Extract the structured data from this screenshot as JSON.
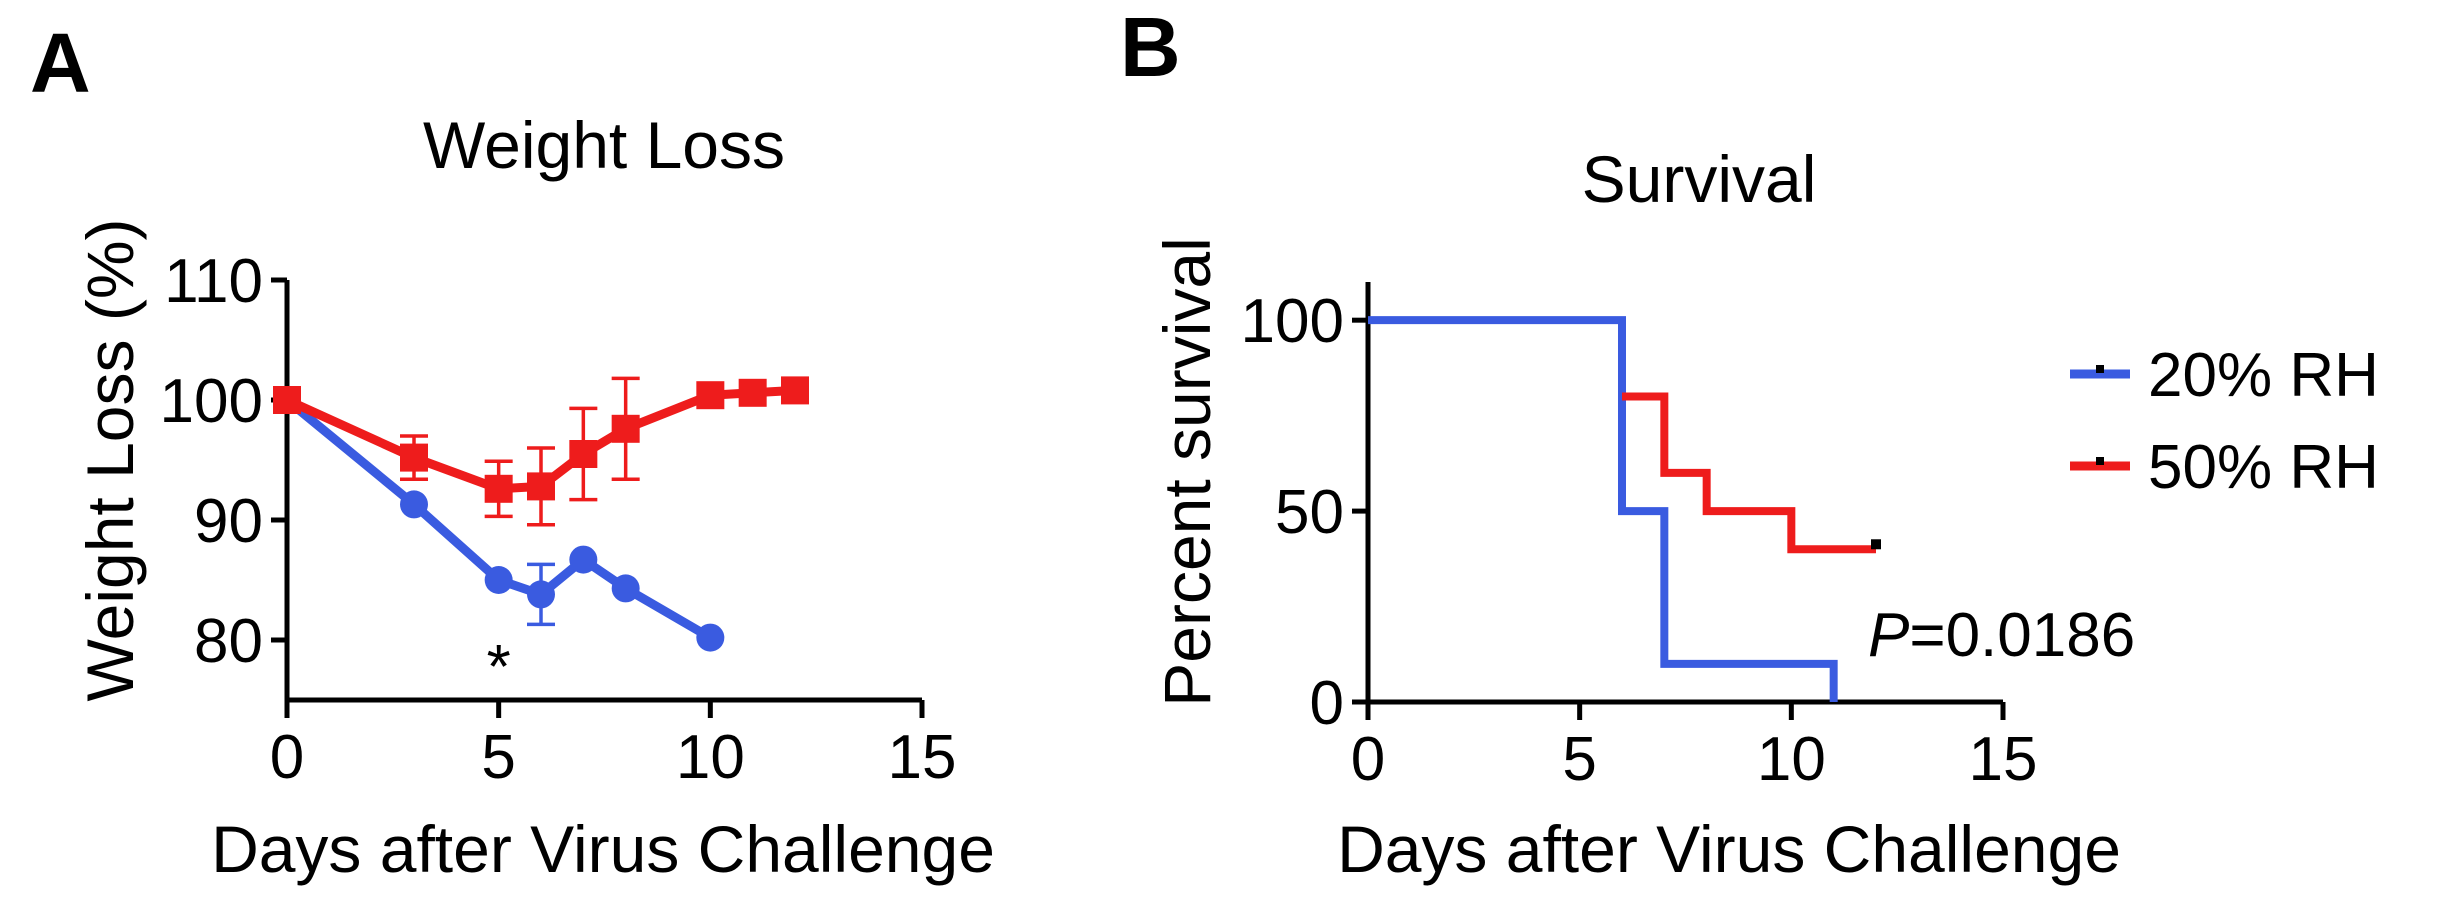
{
  "figure": {
    "panel_a_letter": "A",
    "panel_b_letter": "B"
  },
  "colors": {
    "rh20": "#3a5be0",
    "rh50": "#ee1c1c",
    "axis": "#000000"
  },
  "chart_data": [
    {
      "panel": "A",
      "type": "line",
      "title": "Weight Loss",
      "xlabel": "Days after Virus Challenge",
      "ylabel": "Weight Loss (%)",
      "xlim": [
        0,
        15
      ],
      "ylim": [
        75,
        110
      ],
      "xticks": [
        0,
        5,
        10,
        15
      ],
      "yticks": [
        80,
        90,
        100,
        110
      ],
      "grid": false,
      "annotations": [
        {
          "text": "*",
          "x": 5,
          "y": 78.5
        }
      ],
      "series": [
        {
          "key": "rh20",
          "marker": "circle",
          "points": [
            {
              "x": 0,
              "y": 100,
              "err": 0
            },
            {
              "x": 3,
              "y": 91.3,
              "err": 0
            },
            {
              "x": 5,
              "y": 85,
              "err": 0
            },
            {
              "x": 6,
              "y": 83.8,
              "err": 2.5
            },
            {
              "x": 7,
              "y": 86.7,
              "err": 0
            },
            {
              "x": 8,
              "y": 84.3,
              "err": 0
            },
            {
              "x": 10,
              "y": 80.2,
              "err": 0
            }
          ]
        },
        {
          "key": "rh50",
          "marker": "square",
          "points": [
            {
              "x": 0,
              "y": 100,
              "err": 0
            },
            {
              "x": 3,
              "y": 95.2,
              "err": 1.8
            },
            {
              "x": 5,
              "y": 92.6,
              "err": 2.3
            },
            {
              "x": 6,
              "y": 92.8,
              "err": 3.2
            },
            {
              "x": 7,
              "y": 95.5,
              "err": 3.8
            },
            {
              "x": 8,
              "y": 97.6,
              "err": 4.2
            },
            {
              "x": 10,
              "y": 100.4,
              "err": 0
            },
            {
              "x": 11,
              "y": 100.6,
              "err": 0
            },
            {
              "x": 12,
              "y": 100.8,
              "err": 0
            }
          ]
        }
      ]
    },
    {
      "panel": "B",
      "type": "line",
      "subtype": "step",
      "title": "Survival",
      "xlabel": "Days after Virus Challenge",
      "ylabel": "Percent survival",
      "xlim": [
        0,
        15
      ],
      "ylim": [
        0,
        110
      ],
      "xticks": [
        0,
        5,
        10,
        15
      ],
      "yticks": [
        0,
        50,
        100
      ],
      "grid": false,
      "legend_position": "right",
      "annotation": {
        "italic": "P",
        "rest": "=0.0186"
      },
      "series": [
        {
          "key": "rh20",
          "name": "20% RH",
          "steps": [
            [
              0,
              100
            ],
            [
              6,
              100
            ],
            [
              6,
              50
            ],
            [
              7,
              50
            ],
            [
              7,
              10
            ],
            [
              11,
              10
            ],
            [
              11,
              0
            ]
          ],
          "censor": []
        },
        {
          "key": "rh50",
          "name": "50% RH",
          "steps": [
            [
              6,
              80
            ],
            [
              7,
              80
            ],
            [
              7,
              60
            ],
            [
              8,
              60
            ],
            [
              8,
              50
            ],
            [
              10,
              50
            ],
            [
              10,
              40
            ],
            [
              12,
              40
            ]
          ],
          "censor": [
            [
              12,
              40
            ]
          ]
        }
      ]
    }
  ]
}
